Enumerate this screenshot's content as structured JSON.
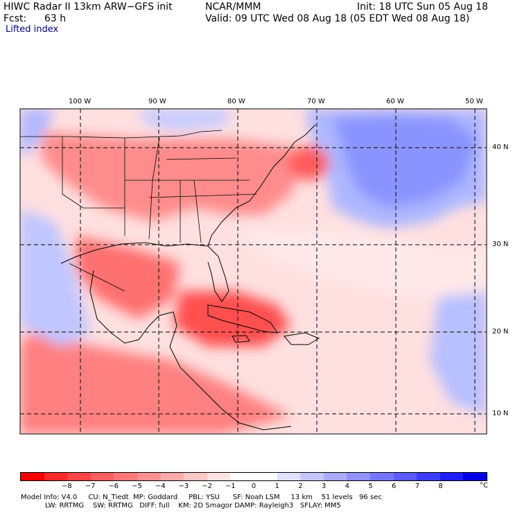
{
  "header": {
    "title": "HIWC Radar II 13km ARW−GFS init",
    "org": "NCAR/MMM",
    "init": "Init: 18 UTC Sun 05 Aug 18",
    "fcst_label": "Fcst:",
    "fcst_value": "63 h",
    "valid": "Valid: 09 UTC Wed 08 Aug 18 (05 EDT Wed 08 Aug 18)",
    "field": "Lifted index"
  },
  "map": {
    "lon_labels": [
      "100 W",
      "90 W",
      "80 W",
      "70 W",
      "60 W",
      "50 W"
    ],
    "lat_labels": [
      "40 N",
      "30 N",
      "20 N",
      "10 N"
    ],
    "colors": {
      "neg_strong": "#ff1a1a",
      "neg_mid": "#ff6666",
      "neg_weak": "#ffb3b3",
      "neutral": "#ffffff",
      "pos_weak": "#c8c8ff",
      "pos_mid": "#8080ff",
      "pos_strong": "#0000e6"
    }
  },
  "colorbar": {
    "colors": [
      "#ff0000",
      "#ff2a2a",
      "#ff4545",
      "#ff5e5e",
      "#ff7777",
      "#ff9191",
      "#ffaaaa",
      "#ffc6c6",
      "#ffe2e2",
      "#ffffff",
      "#ffffff",
      "#e0e0ff",
      "#c6c6ff",
      "#aaaaff",
      "#9090ff",
      "#7575ff",
      "#5a5aff",
      "#3c3cff",
      "#1e1eff",
      "#0000e8"
    ],
    "ticks": [
      "−8",
      "−7",
      "−6",
      "−5",
      "−4",
      "−3",
      "−2",
      "−1",
      "0",
      "1",
      "2",
      "3",
      "4",
      "5",
      "6",
      "7",
      "8"
    ],
    "unit": "°C"
  },
  "footer": {
    "line1": "Model Info: V4.0     CU: N_Tiedt  MP: Goddard     PBL: YSU      SF: Noah LSM     13 km    51 levels   96 sec",
    "line2": "           LW: RRTMG    SW: RRTMG   DIFF: full    KM: 2D Smagor DAMP: Rayleigh3   SFLAY: MM5"
  }
}
